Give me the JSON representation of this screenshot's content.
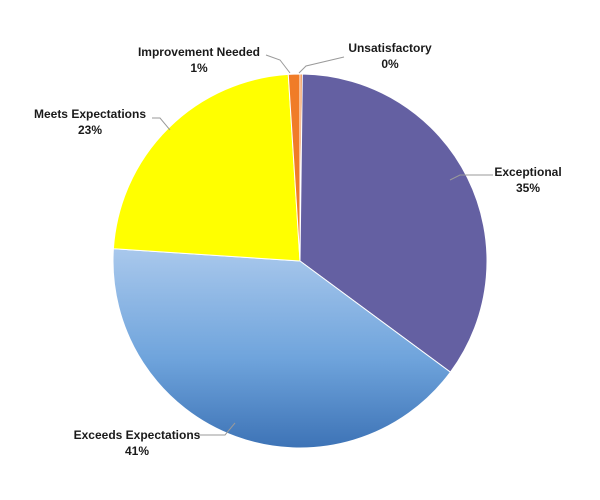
{
  "chart_data": {
    "type": "pie",
    "title": "",
    "legend": "none",
    "start_angle_deg": 0,
    "direction": "clockwise",
    "slices": [
      {
        "name": "Unsatisfactory",
        "value": 0.2,
        "label": "0%",
        "color": "#f07c28"
      },
      {
        "name": "Exceptional",
        "value": 35,
        "label": "35%",
        "color": "#6460a2"
      },
      {
        "name": "Exceeds Expectations",
        "value": 41,
        "label": "41%",
        "color": "#6a9fd8"
      },
      {
        "name": "Meets Expectations",
        "value": 23,
        "label": "23%",
        "color": "#ffff00"
      },
      {
        "name": "Improvement Needed",
        "value": 1,
        "label": "1%",
        "color": "#f07c28"
      }
    ]
  }
}
